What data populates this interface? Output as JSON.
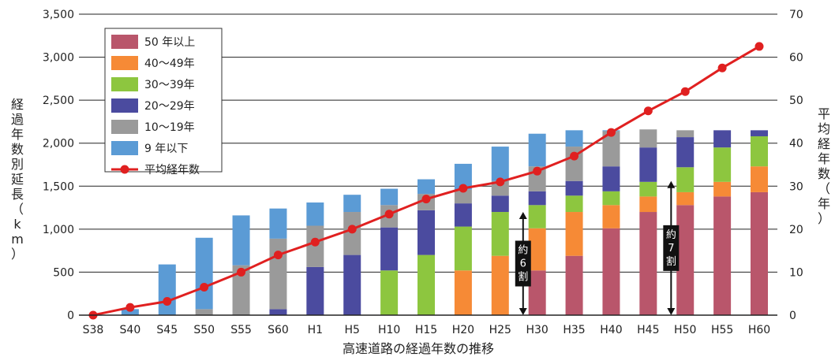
{
  "chart_data": {
    "type": "bar",
    "stacked": true,
    "xlabel": "高速道路の経過年数の推移",
    "ylabel": "経過年数別延長（km）",
    "y2label": "平均経年数（年）",
    "ylim": [
      0,
      3500
    ],
    "y2lim": [
      0,
      70
    ],
    "yticks": [
      "0",
      "500",
      "1,000",
      "1,500",
      "2,000",
      "2,500",
      "3,000",
      "3,500"
    ],
    "y2ticks": [
      "0",
      "10",
      "20",
      "30",
      "40",
      "50",
      "60",
      "70"
    ],
    "grid": true,
    "legend_position": "top-left",
    "categories": [
      "S38",
      "S40",
      "S45",
      "S50",
      "S55",
      "S60",
      "H1",
      "H5",
      "H10",
      "H15",
      "H20",
      "H25",
      "H30",
      "H35",
      "H40",
      "H45",
      "H50",
      "H55",
      "H60"
    ],
    "series": [
      {
        "name": "50 年以上",
        "color": "#b9566b",
        "values": [
          0,
          0,
          0,
          0,
          0,
          0,
          0,
          0,
          0,
          0,
          0,
          0,
          520,
          690,
          1010,
          1200,
          1280,
          1380,
          1430
        ]
      },
      {
        "name": "40～49年",
        "color": "#f68a36",
        "values": [
          0,
          0,
          0,
          0,
          0,
          0,
          0,
          0,
          0,
          0,
          520,
          690,
          490,
          510,
          270,
          180,
          150,
          170,
          300
        ]
      },
      {
        "name": "30～39年",
        "color": "#8dc63f",
        "values": [
          0,
          0,
          0,
          0,
          0,
          0,
          0,
          0,
          520,
          700,
          510,
          510,
          270,
          190,
          160,
          170,
          290,
          400,
          350
        ]
      },
      {
        "name": "20～29年",
        "color": "#4b4b9f",
        "values": [
          0,
          0,
          0,
          0,
          0,
          70,
          560,
          700,
          500,
          520,
          270,
          190,
          160,
          170,
          290,
          400,
          350,
          200,
          70
        ]
      },
      {
        "name": "10～19年",
        "color": "#9a9a9a",
        "values": [
          0,
          0,
          0,
          70,
          580,
          820,
          480,
          500,
          260,
          190,
          160,
          170,
          290,
          400,
          410,
          210,
          80,
          0,
          0
        ]
      },
      {
        "name": "9 年以下",
        "color": "#5b9bd5",
        "values": [
          0,
          70,
          590,
          830,
          580,
          350,
          270,
          200,
          190,
          170,
          300,
          400,
          380,
          190,
          10,
          0,
          0,
          0,
          0
        ]
      }
    ],
    "line": {
      "name": "平均経年数",
      "color": "#e02020",
      "values": [
        0,
        1.8,
        3.2,
        6.5,
        10,
        14,
        17,
        20,
        23.5,
        27,
        29.5,
        31,
        33.5,
        37,
        42.5,
        47.5,
        52,
        57.5,
        62.5
      ]
    },
    "annotations": [
      {
        "category": "H25",
        "from": 0,
        "to": 1200,
        "text": [
          "約",
          "6",
          "割"
        ]
      },
      {
        "category": "H45",
        "from": 0,
        "to": 1560,
        "text": [
          "約",
          "7",
          "割"
        ]
      }
    ]
  }
}
